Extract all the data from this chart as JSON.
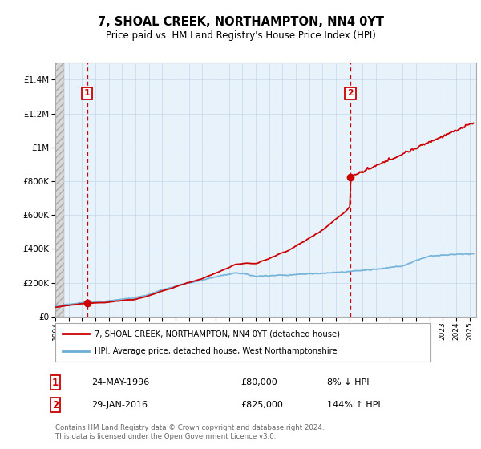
{
  "title": "7, SHOAL CREEK, NORTHAMPTON, NN4 0YT",
  "subtitle": "Price paid vs. HM Land Registry's House Price Index (HPI)",
  "ytick_values": [
    0,
    200000,
    400000,
    600000,
    800000,
    1000000,
    1200000,
    1400000
  ],
  "ylim": [
    0,
    1500000
  ],
  "xlim_start": 1994.0,
  "xlim_end": 2025.5,
  "sale1_date": 1996.39,
  "sale1_price": 80000,
  "sale2_date": 2016.08,
  "sale2_price": 825000,
  "hpi_color": "#6BAED6",
  "property_color": "#CC0000",
  "dashed_vline_color": "#CC0000",
  "legend_label1": "7, SHOAL CREEK, NORTHAMPTON, NN4 0YT (detached house)",
  "legend_label2": "HPI: Average price, detached house, West Northamptonshire",
  "footer": "Contains HM Land Registry data © Crown copyright and database right 2024.\nThis data is licensed under the Open Government Licence v3.0.",
  "grid_color": "#C8DCF0",
  "background_plot": "#E8F2FB",
  "hatch_area_color": "#D8D8D8"
}
